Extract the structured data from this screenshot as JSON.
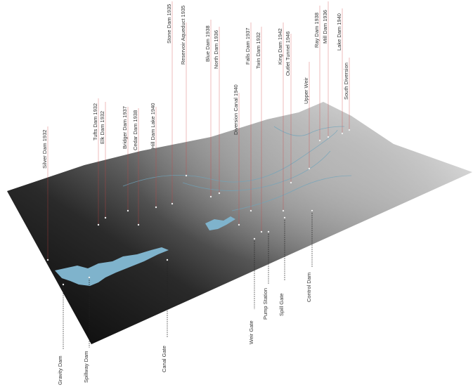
{
  "map": {
    "top_labels": [
      "Silver Dam 1932",
      "Tufts Dam 1932",
      "Elk Dam 1932",
      "Bridger Dam 1937",
      "Cedar Dam 1938",
      "Hill Dam Lake 1940",
      "Stone Dam 1935",
      "Reservoir Aqueduct 1935",
      "Blue Dam 1938",
      "North Dam 1936",
      "Diversion Canal 1940",
      "Falls Dam 1937",
      "Twin Dam 1932",
      "King Dam 1942",
      "Outlet Tunnel 1946",
      "Upper Weir",
      "Ray Dam 1938",
      "Mill Dam 1936",
      "Lake Dam 1940",
      "South Diversion"
    ],
    "bottom_labels": [
      "Gravity Dam",
      "Spillway Dam",
      "Canal Gate",
      "Weir Gate",
      "Pump Station",
      "Spill Gate",
      "Control Dam"
    ]
  }
}
